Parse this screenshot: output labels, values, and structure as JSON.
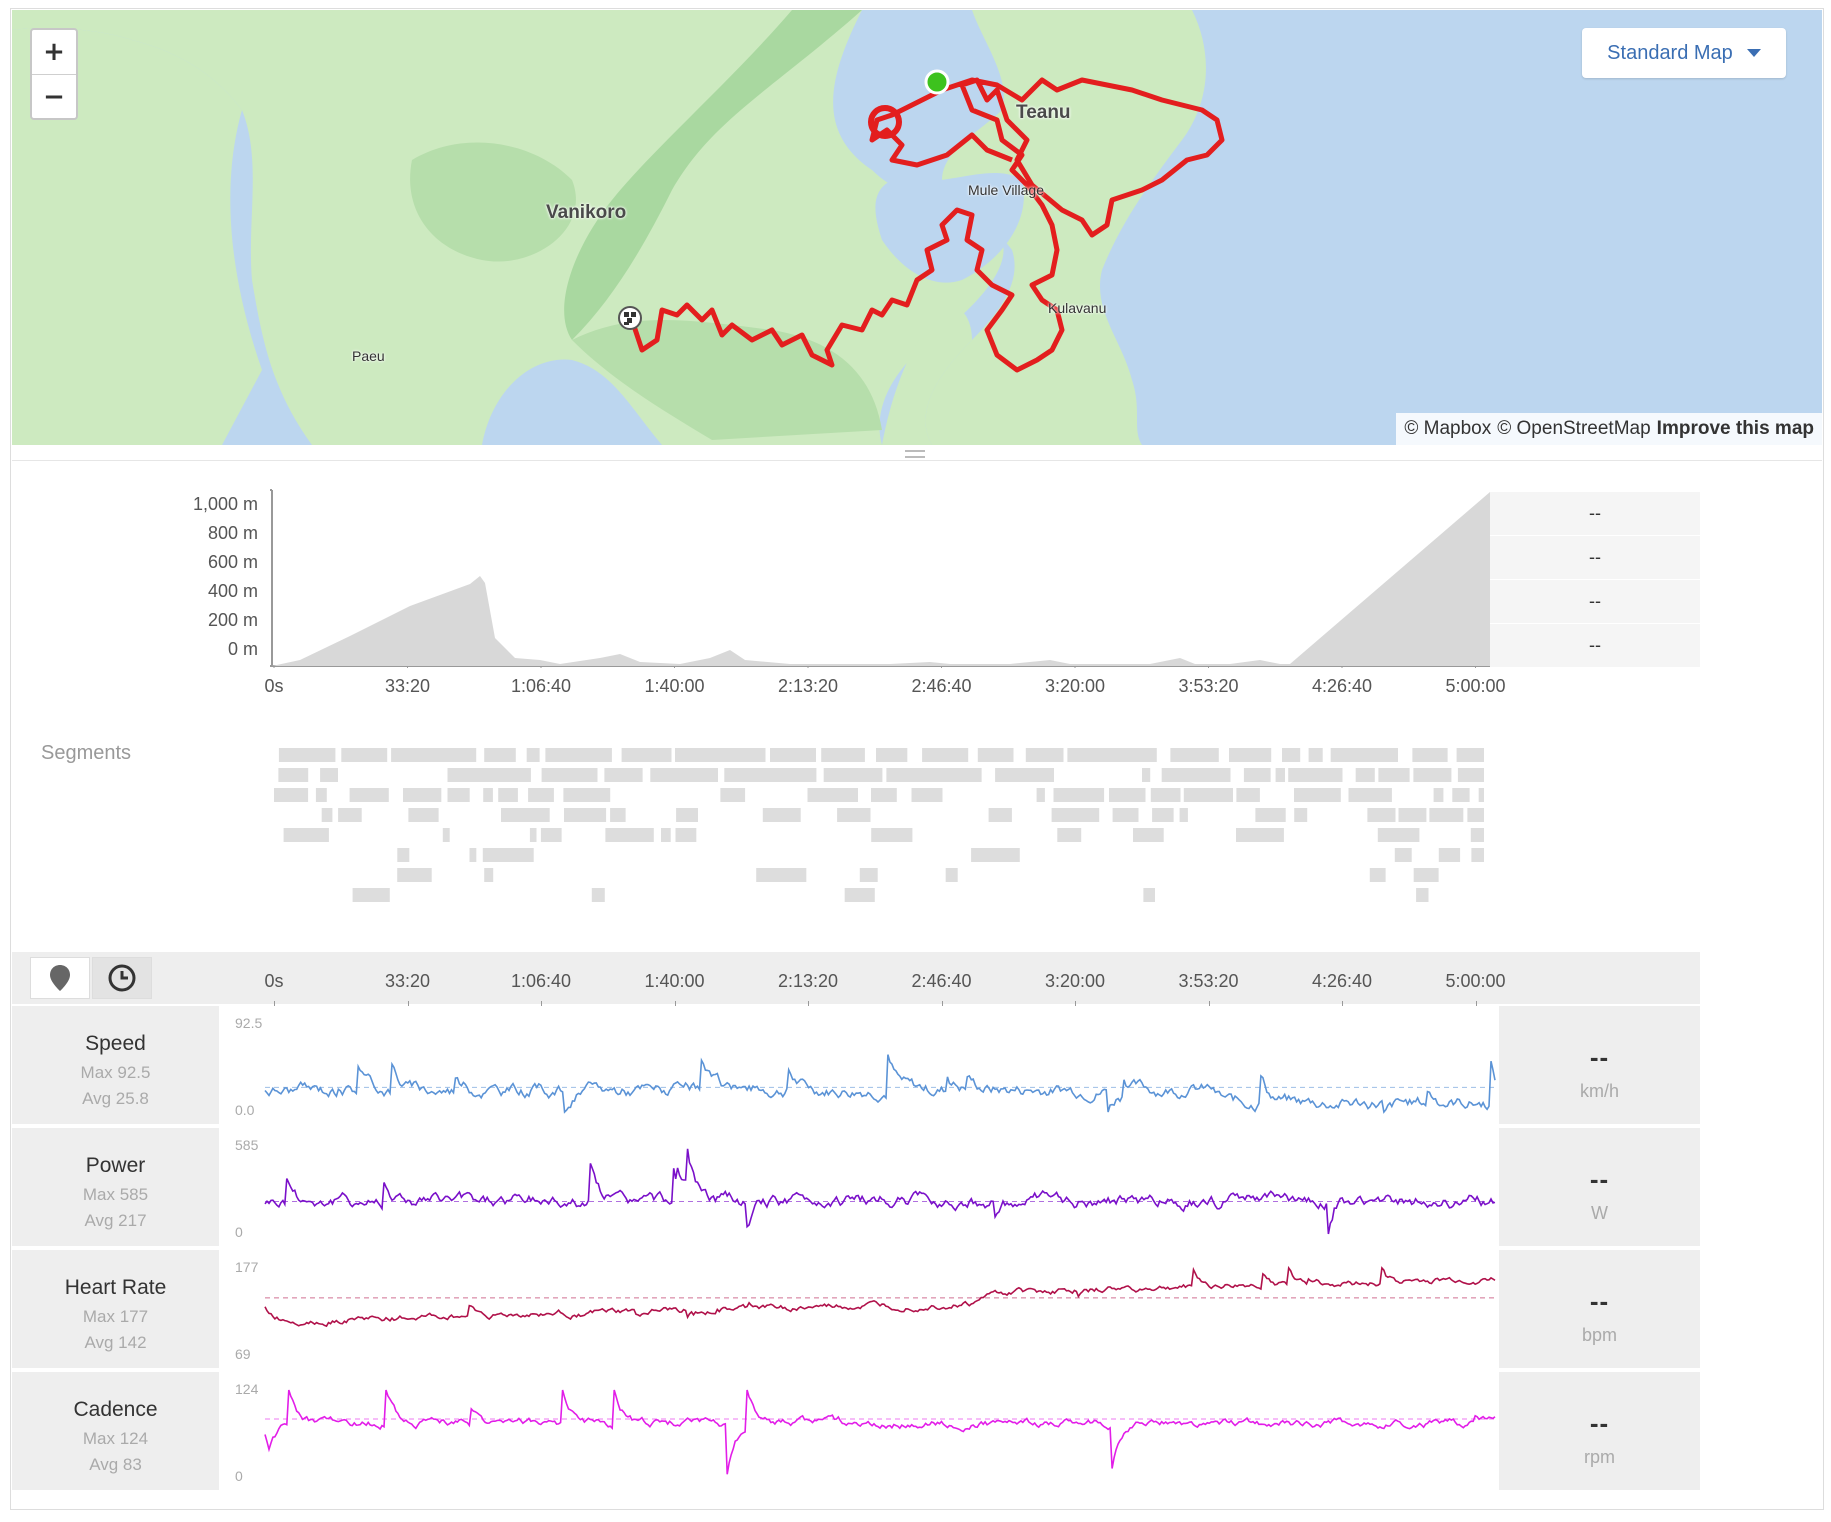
{
  "map": {
    "zoom_in": "+",
    "zoom_out": "−",
    "map_type_label": "Standard Map",
    "attribution": {
      "mapbox": "© Mapbox",
      "osm": "© OpenStreetMap",
      "improve": "Improve this map"
    },
    "places": {
      "vanikoro": "Vanikoro",
      "teanu": "Teanu",
      "mule_village": "Mule Village",
      "kulavanu": "Kulavanu",
      "paeu": "Paeu"
    },
    "colors": {
      "water": "#bcd6ef",
      "land": "#cdeac0",
      "route": "#e31e1e",
      "start": "#3dc21e"
    },
    "icons": {
      "start": "start-marker-icon",
      "finish": "finish-flag-icon"
    }
  },
  "elevation": {
    "y_ticks": [
      "1,000 m",
      "800 m",
      "600 m",
      "400 m",
      "200 m",
      "0 m"
    ],
    "values": [
      "--",
      "--",
      "--",
      "--"
    ]
  },
  "x_ticks": [
    "0s",
    "33:20",
    "1:06:40",
    "1:40:00",
    "2:13:20",
    "2:46:40",
    "3:20:00",
    "3:53:20",
    "4:26:40",
    "5:00:00"
  ],
  "segments_label": "Segments",
  "stream_controls": {
    "distance_icon": "map-pin-icon",
    "time_icon": "clock-icon"
  },
  "streams": [
    {
      "name": "Speed",
      "max": "Max 92.5",
      "avg": "Avg 25.8",
      "ymax": "92.5",
      "ymin": "0.0",
      "value": "--",
      "unit": "km/h",
      "color": "#5b93d6"
    },
    {
      "name": "Power",
      "max": "Max 585",
      "avg": "Avg 217",
      "ymax": "585",
      "ymin": "0",
      "value": "--",
      "unit": "W",
      "color": "#7a10c9"
    },
    {
      "name": "Heart Rate",
      "max": "Max 177",
      "avg": "Avg 142",
      "ymax": "177",
      "ymin": "69",
      "value": "--",
      "unit": "bpm",
      "color": "#b0114a"
    },
    {
      "name": "Cadence",
      "max": "Max 124",
      "avg": "Avg 83",
      "ymax": "124",
      "ymin": "0",
      "value": "--",
      "unit": "rpm",
      "color": "#e21ee8"
    }
  ]
}
